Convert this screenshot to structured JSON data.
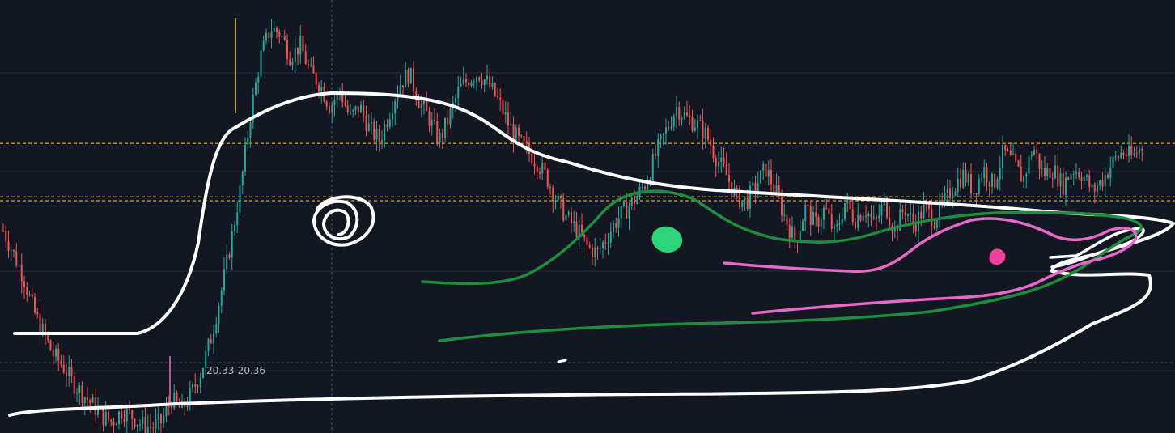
{
  "colors": {
    "background": "#131722",
    "grid": "#2a2e39",
    "crosshair": "#50535e",
    "up": "#26a69a",
    "down": "#ef5350",
    "level": "#f5c542",
    "drawing_white": "#ffffff",
    "drawing_green": "#1e8e3e",
    "drawing_pink": "#e868c8",
    "dot_green": "#2ed47a",
    "dot_pink": "#f0409e"
  },
  "range_label": "20.33-20.36",
  "chart_data": {
    "type": "candlestick",
    "title": "",
    "xlabel": "",
    "ylabel": "",
    "ylim": [
      19.8,
      27.5
    ],
    "grid": true,
    "levels": [
      24.95,
      24.0,
      23.93
    ],
    "prices": [
      23.4,
      23.0,
      22.6,
      22.0,
      21.6,
      21.2,
      21.0,
      20.7,
      20.5,
      20.3,
      20.1,
      20.0,
      20.2,
      20.1,
      19.95,
      19.9,
      20.0,
      20.4,
      20.2,
      20.5,
      20.9,
      21.5,
      22.3,
      23.2,
      24.2,
      25.5,
      26.5,
      27.0,
      26.9,
      26.5,
      26.7,
      26.2,
      26.0,
      25.6,
      25.9,
      25.4,
      25.6,
      25.2,
      25.0,
      25.5,
      26.0,
      26.2,
      25.7,
      25.4,
      25.0,
      25.4,
      25.9,
      26.1,
      26.2,
      26.0,
      25.7,
      25.3,
      25.0,
      24.8,
      24.6,
      24.3,
      23.9,
      23.6,
      23.4,
      23.1,
      23.0,
      23.3,
      23.6,
      23.8,
      24.0,
      24.3,
      24.8,
      25.2,
      25.6,
      25.4,
      25.3,
      25.1,
      24.7,
      24.4,
      24.0,
      23.9,
      24.2,
      24.5,
      24.1,
      23.6,
      23.2,
      23.8,
      23.5,
      23.8,
      23.3,
      23.9,
      23.6,
      23.8,
      23.5,
      23.9,
      23.4,
      23.8,
      23.5,
      23.8,
      23.6,
      23.9,
      24.2,
      24.4,
      24.1,
      24.5,
      24.2,
      24.8,
      24.6,
      24.3,
      24.9,
      24.4,
      24.5,
      24.2,
      24.5,
      24.4,
      24.1,
      24.3,
      24.6,
      24.8,
      24.7,
      24.9
    ]
  }
}
